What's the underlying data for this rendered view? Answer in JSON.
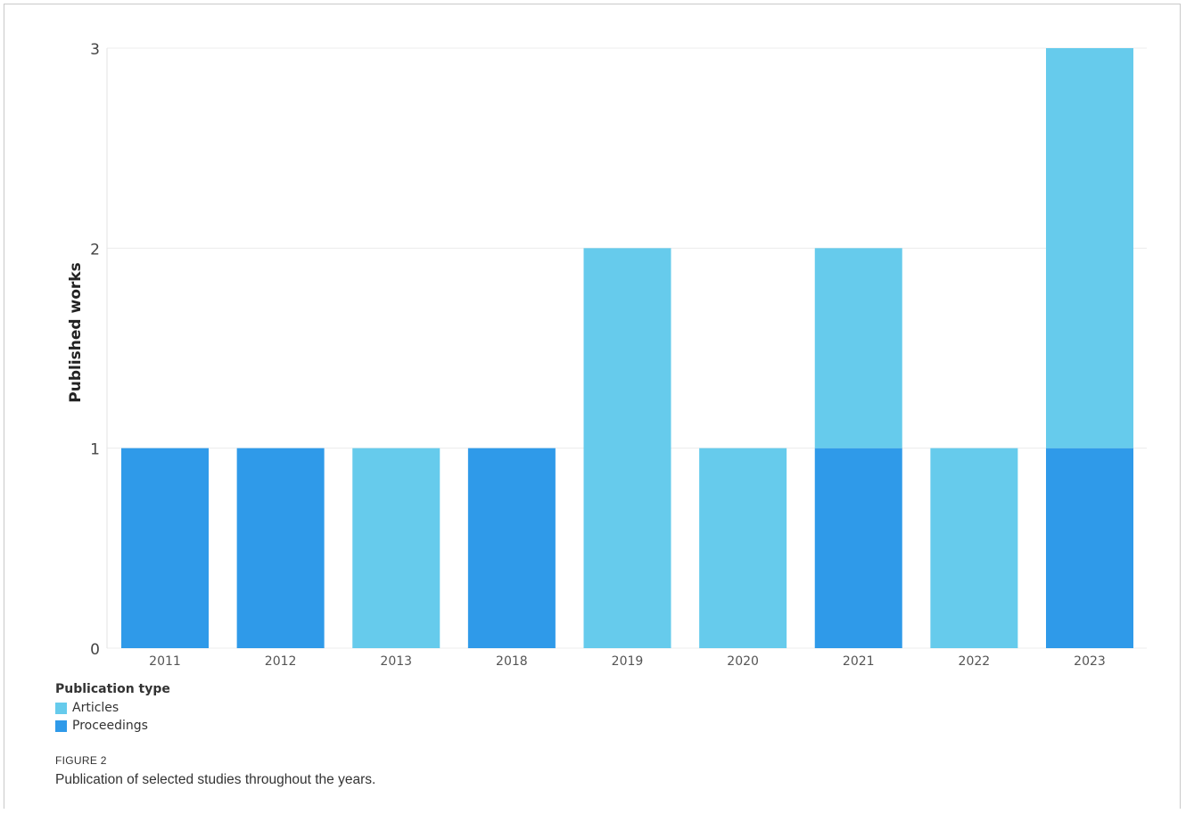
{
  "chart_data": {
    "type": "bar",
    "stacked": true,
    "categories": [
      "2011",
      "2012",
      "2013",
      "2018",
      "2019",
      "2020",
      "2021",
      "2022",
      "2023"
    ],
    "series": [
      {
        "name": "Proceedings",
        "color": "#2f9ae9",
        "values": [
          1,
          1,
          0,
          1,
          0,
          0,
          1,
          0,
          1
        ]
      },
      {
        "name": "Articles",
        "color": "#66cbec",
        "values": [
          0,
          0,
          1,
          0,
          2,
          1,
          1,
          1,
          2
        ]
      }
    ],
    "ylabel": "Published works",
    "xlabel": "",
    "ylim": [
      0,
      3
    ],
    "yticks": [
      "0",
      "1",
      "2",
      "3"
    ],
    "grid": true,
    "legend": {
      "title": "Publication type",
      "placement": "bottom-left",
      "items": [
        "Articles",
        "Proceedings"
      ]
    }
  },
  "figure": {
    "label": "FIGURE 2",
    "caption": "Publication of selected studies throughout the years."
  }
}
